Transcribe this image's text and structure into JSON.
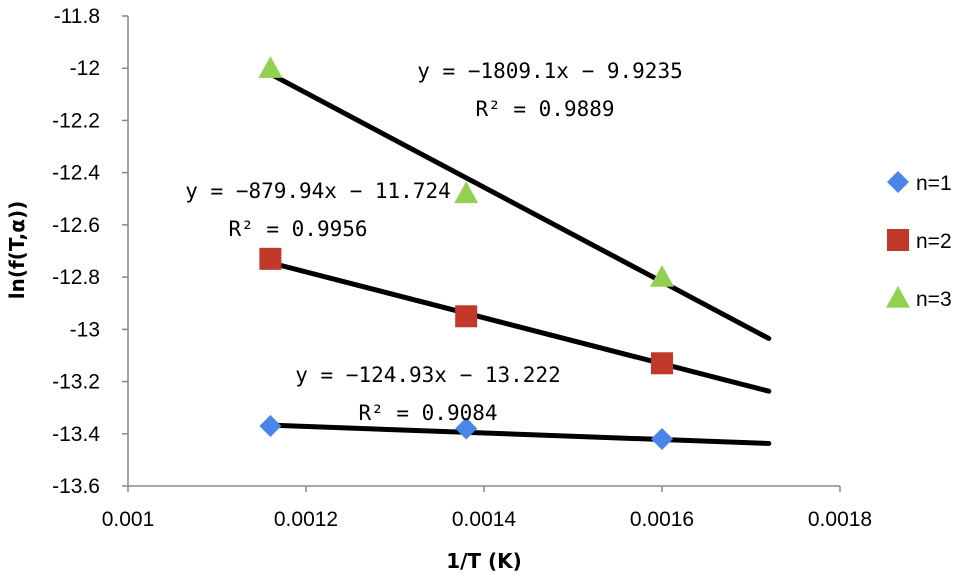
{
  "chart_data": {
    "type": "scatter",
    "xlabel": "1/T (K)",
    "ylabel": "ln(f(T,α))",
    "xlim": [
      0.001,
      0.0018
    ],
    "ylim": [
      -13.6,
      -11.8
    ],
    "x_ticks": [
      "0.001",
      "0.0012",
      "0.0014",
      "0.0016",
      "0.0018"
    ],
    "y_ticks": [
      "-11.8",
      "-12",
      "-12.2",
      "-12.4",
      "-12.6",
      "-12.8",
      "-13",
      "-13.2",
      "-13.4",
      "-13.6"
    ],
    "grid": false,
    "legend_position": "right",
    "series": [
      {
        "name": "n=1",
        "marker": "diamond",
        "color": "#4A86E8",
        "x": [
          0.00116,
          0.00138,
          0.0016
        ],
        "y": [
          -13.37,
          -13.38,
          -13.42
        ],
        "trendline": {
          "x": [
            0.00116,
            0.00172
          ],
          "y": [
            -13.367,
            -13.437
          ]
        },
        "equation": "y = −124.93x − 13.222",
        "r2": "R² = 0.9084"
      },
      {
        "name": "n=2",
        "marker": "square",
        "color": "#C0392B",
        "x": [
          0.00116,
          0.00138,
          0.0016
        ],
        "y": [
          -12.73,
          -12.95,
          -13.13
        ],
        "trendline": {
          "x": [
            0.00116,
            0.00172
          ],
          "y": [
            -12.745,
            -13.237
          ]
        },
        "equation": "y = −879.94x − 11.724",
        "r2": "R² = 0.9956"
      },
      {
        "name": "n=3",
        "marker": "triangle",
        "color": "#92D050",
        "x": [
          0.00116,
          0.00138,
          0.0016
        ],
        "y": [
          -12.0,
          -12.48,
          -12.8
        ],
        "trendline": {
          "x": [
            0.00116,
            0.00172
          ],
          "y": [
            -12.022,
            -13.035
          ]
        },
        "equation": "y = −1809.1x − 9.9235",
        "r2": "R² = 0.9889"
      }
    ]
  }
}
